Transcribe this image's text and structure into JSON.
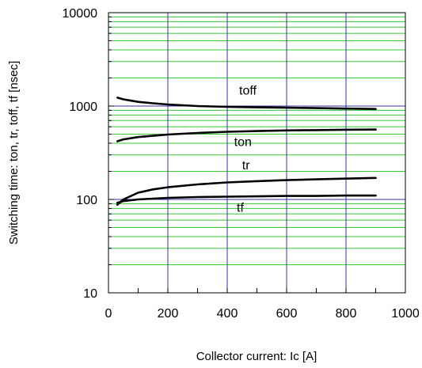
{
  "chart_data": {
    "type": "line",
    "title": "",
    "xlabel": "Collector current: Ic [A]",
    "ylabel": "Switching time: ton, tr, toff, tf [nsec]",
    "xlim": [
      0,
      1000
    ],
    "ylim": [
      10,
      10000
    ],
    "yscale": "log",
    "grid": true,
    "legend": "none",
    "x_ticks": [
      "0",
      "200",
      "400",
      "600",
      "800",
      "1000"
    ],
    "y_ticks": [
      "10",
      "100",
      "1000",
      "10000"
    ],
    "x_tick_values": [
      0,
      200,
      400,
      600,
      800,
      1000
    ],
    "y_tick_values": [
      10,
      100,
      1000,
      10000
    ],
    "colors": {
      "major_grid": "#3333aa",
      "minor_grid": "#33cc33",
      "series": "#000000",
      "frame": "#000000"
    },
    "series": [
      {
        "name": "toff",
        "x": [
          30,
          50,
          100,
          150,
          200,
          300,
          400,
          500,
          600,
          700,
          800,
          900
        ],
        "y": [
          1230,
          1180,
          1110,
          1070,
          1040,
          1000,
          980,
          970,
          960,
          950,
          940,
          930
        ]
      },
      {
        "name": "ton",
        "x": [
          30,
          50,
          100,
          150,
          200,
          300,
          400,
          500,
          600,
          700,
          800,
          900
        ],
        "y": [
          420,
          440,
          465,
          480,
          495,
          515,
          530,
          540,
          548,
          553,
          558,
          560
        ]
      },
      {
        "name": "tr",
        "x": [
          30,
          50,
          100,
          150,
          200,
          300,
          400,
          500,
          600,
          700,
          800,
          900
        ],
        "y": [
          88,
          100,
          118,
          128,
          135,
          145,
          152,
          157,
          161,
          164,
          167,
          170
        ]
      },
      {
        "name": "tf",
        "x": [
          30,
          50,
          100,
          150,
          200,
          300,
          400,
          500,
          600,
          700,
          800,
          900
        ],
        "y": [
          92,
          96,
          100,
          102,
          104,
          106,
          107,
          108,
          109,
          109,
          110,
          110
        ]
      }
    ]
  }
}
